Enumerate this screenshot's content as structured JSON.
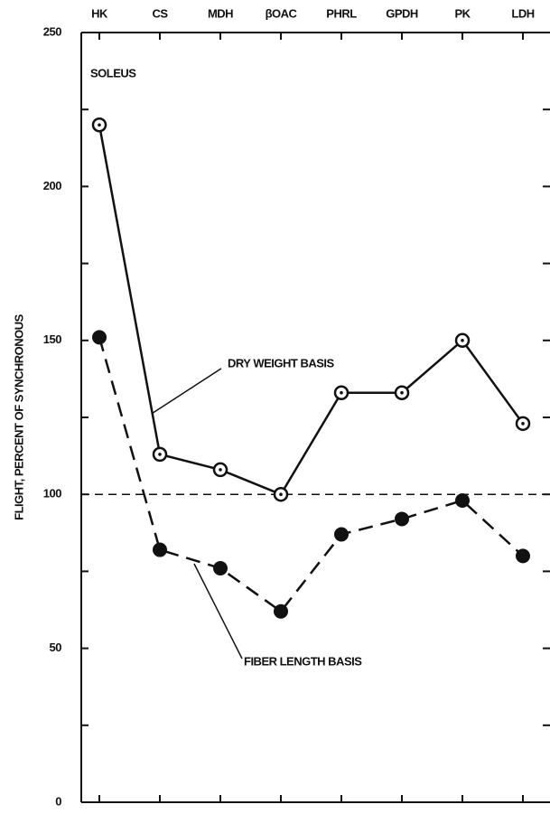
{
  "chart_data": {
    "type": "line",
    "title": "SOLEUS",
    "y_label": "FLIGHT, PERCENT OF SYNCHRONOUS",
    "categories": [
      "HK",
      "CS",
      "MDH",
      "βOAC",
      "PHRL",
      "GPDH",
      "PK",
      "LDH"
    ],
    "series": [
      {
        "name": "DRY WEIGHT BASIS",
        "color": "#111111",
        "style": "solid",
        "marker": "open",
        "values": [
          220,
          113,
          108,
          100,
          133,
          133,
          150,
          123
        ]
      },
      {
        "name": "FIBER LENGTH BASIS",
        "color": "#111111",
        "style": "dashed",
        "marker": "filled",
        "values": [
          151,
          82,
          76,
          62,
          87,
          92,
          98,
          80
        ]
      }
    ],
    "reference_line": 100,
    "ylim": [
      0,
      250
    ],
    "yticks": [
      0,
      50,
      100,
      150,
      200,
      250
    ],
    "minor_yticks": [
      25,
      75,
      125,
      175,
      225
    ]
  }
}
